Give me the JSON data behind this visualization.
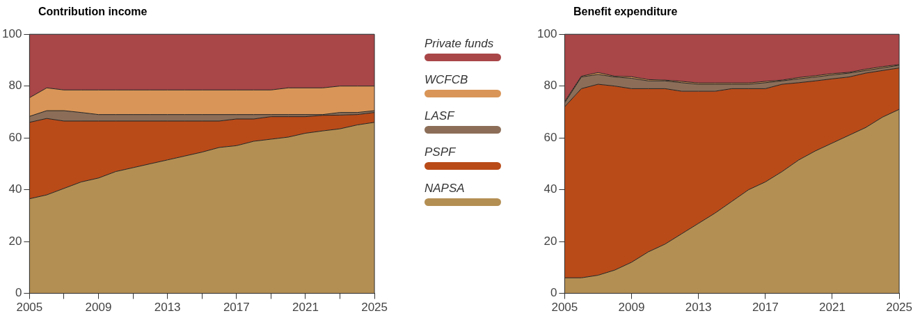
{
  "chart_data": [
    {
      "type": "area",
      "title": "Contribution income",
      "stacked": true,
      "legend": "right",
      "x": [
        2005,
        2006,
        2007,
        2008,
        2009,
        2010,
        2011,
        2012,
        2013,
        2014,
        2015,
        2016,
        2017,
        2018,
        2019,
        2020,
        2021,
        2022,
        2023,
        2024,
        2025
      ],
      "xlim": [
        2005,
        2025
      ],
      "xticks": [
        2005,
        {
          "value": 2007,
          "label": null
        },
        2009,
        {
          "value": 2011,
          "label": null
        },
        2013,
        {
          "value": 2015,
          "label": null
        },
        2017,
        {
          "value": 2019,
          "label": null
        },
        2021,
        {
          "value": 2023,
          "label": null
        },
        2025
      ],
      "ylim": [
        0,
        100
      ],
      "yticks": [
        0,
        20,
        40,
        60,
        80,
        100
      ],
      "grid": false,
      "series": [
        {
          "name": "NAPSA",
          "color": "#b48f53",
          "values": [
            36.5,
            38,
            40.5,
            43,
            44.5,
            47,
            48.5,
            50,
            51.5,
            53,
            54.5,
            56.3,
            57,
            58.7,
            59.5,
            60.3,
            61.8,
            62.7,
            63.5,
            65,
            66
          ]
        },
        {
          "name": "PSPF",
          "color": "#b94b19",
          "values": [
            29.5,
            29.5,
            26,
            23.5,
            22,
            19.5,
            18,
            16.5,
            15,
            13.5,
            12,
            10.2,
            10.3,
            8.6,
            8.7,
            7.9,
            6.4,
            6,
            5.3,
            4,
            3.8
          ]
        },
        {
          "name": "LASF",
          "color": "#8c6e58",
          "values": [
            2.3,
            3,
            4,
            3.3,
            2.5,
            2.5,
            2.5,
            2.5,
            2.5,
            2.5,
            2.5,
            2.5,
            1.7,
            1.7,
            0.8,
            0.8,
            0.8,
            0.3,
            1,
            0.8,
            0.7
          ]
        },
        {
          "name": "WCFCB",
          "color": "#d99557",
          "values": [
            7.2,
            8.8,
            8,
            8.7,
            9.5,
            9.5,
            9.5,
            9.5,
            9.5,
            9.5,
            9.5,
            9.5,
            9.5,
            9.5,
            9.5,
            10.3,
            10.3,
            10.3,
            10.2,
            10.2,
            9.5
          ]
        },
        {
          "name": "Private funds",
          "color": "#a94648",
          "values": [
            24.5,
            20.7,
            21.5,
            21.5,
            21.5,
            21.5,
            21.5,
            21.5,
            21.5,
            21.5,
            21.5,
            21.5,
            21.5,
            21.5,
            21.5,
            20.7,
            20.7,
            20.7,
            20,
            20,
            20
          ]
        }
      ]
    },
    {
      "type": "area",
      "title": "Benefit expenditure",
      "stacked": true,
      "x": [
        2005,
        2006,
        2007,
        2008,
        2009,
        2010,
        2011,
        2012,
        2013,
        2014,
        2015,
        2016,
        2017,
        2018,
        2019,
        2020,
        2021,
        2022,
        2023,
        2024,
        2025
      ],
      "xlim": [
        2005,
        2025
      ],
      "xticks": [
        2005,
        2009,
        2013,
        2017,
        2021,
        2025
      ],
      "ylim": [
        0,
        100
      ],
      "yticks": [
        0,
        20,
        40,
        60,
        80,
        100
      ],
      "grid": false,
      "series": [
        {
          "color": "#b48f53",
          "values": [
            6,
            6,
            7,
            9,
            12,
            16,
            19,
            23,
            27,
            31,
            35.5,
            40,
            43,
            47,
            51.5,
            55,
            58,
            61,
            64,
            68,
            71
          ]
        },
        {
          "color": "#b94b19",
          "values": [
            66,
            73,
            73.7,
            71,
            67,
            63,
            60,
            55,
            51,
            47,
            43.5,
            39,
            36,
            33.7,
            29.8,
            27,
            24.8,
            22.5,
            21,
            18,
            16
          ]
        },
        {
          "color": "#8c6e58",
          "values": [
            1.5,
            4.5,
            3.8,
            3.5,
            4,
            3,
            3,
            3.3,
            2.7,
            2.7,
            1.7,
            1.7,
            2.3,
            1.3,
            1.5,
            1.5,
            1.5,
            1.5,
            1,
            1,
            1
          ]
        },
        {
          "color": "#d99557",
          "values": [
            0.5,
            0.3,
            0.7,
            0.3,
            0.6,
            0.5,
            0.3,
            0.5,
            0.5,
            0.5,
            0.5,
            0.5,
            0.5,
            0.3,
            0.5,
            0.5,
            0.5,
            0.3,
            0.5,
            0.5,
            0.3
          ]
        },
        {
          "color": "#a94648",
          "values": [
            26,
            16.2,
            14.8,
            16.2,
            16.4,
            17.5,
            17.7,
            18.2,
            18.8,
            18.8,
            18.8,
            18.8,
            18.2,
            17.7,
            16.7,
            16,
            15.2,
            14.7,
            13.5,
            12.5,
            11.7
          ]
        }
      ]
    }
  ]
}
